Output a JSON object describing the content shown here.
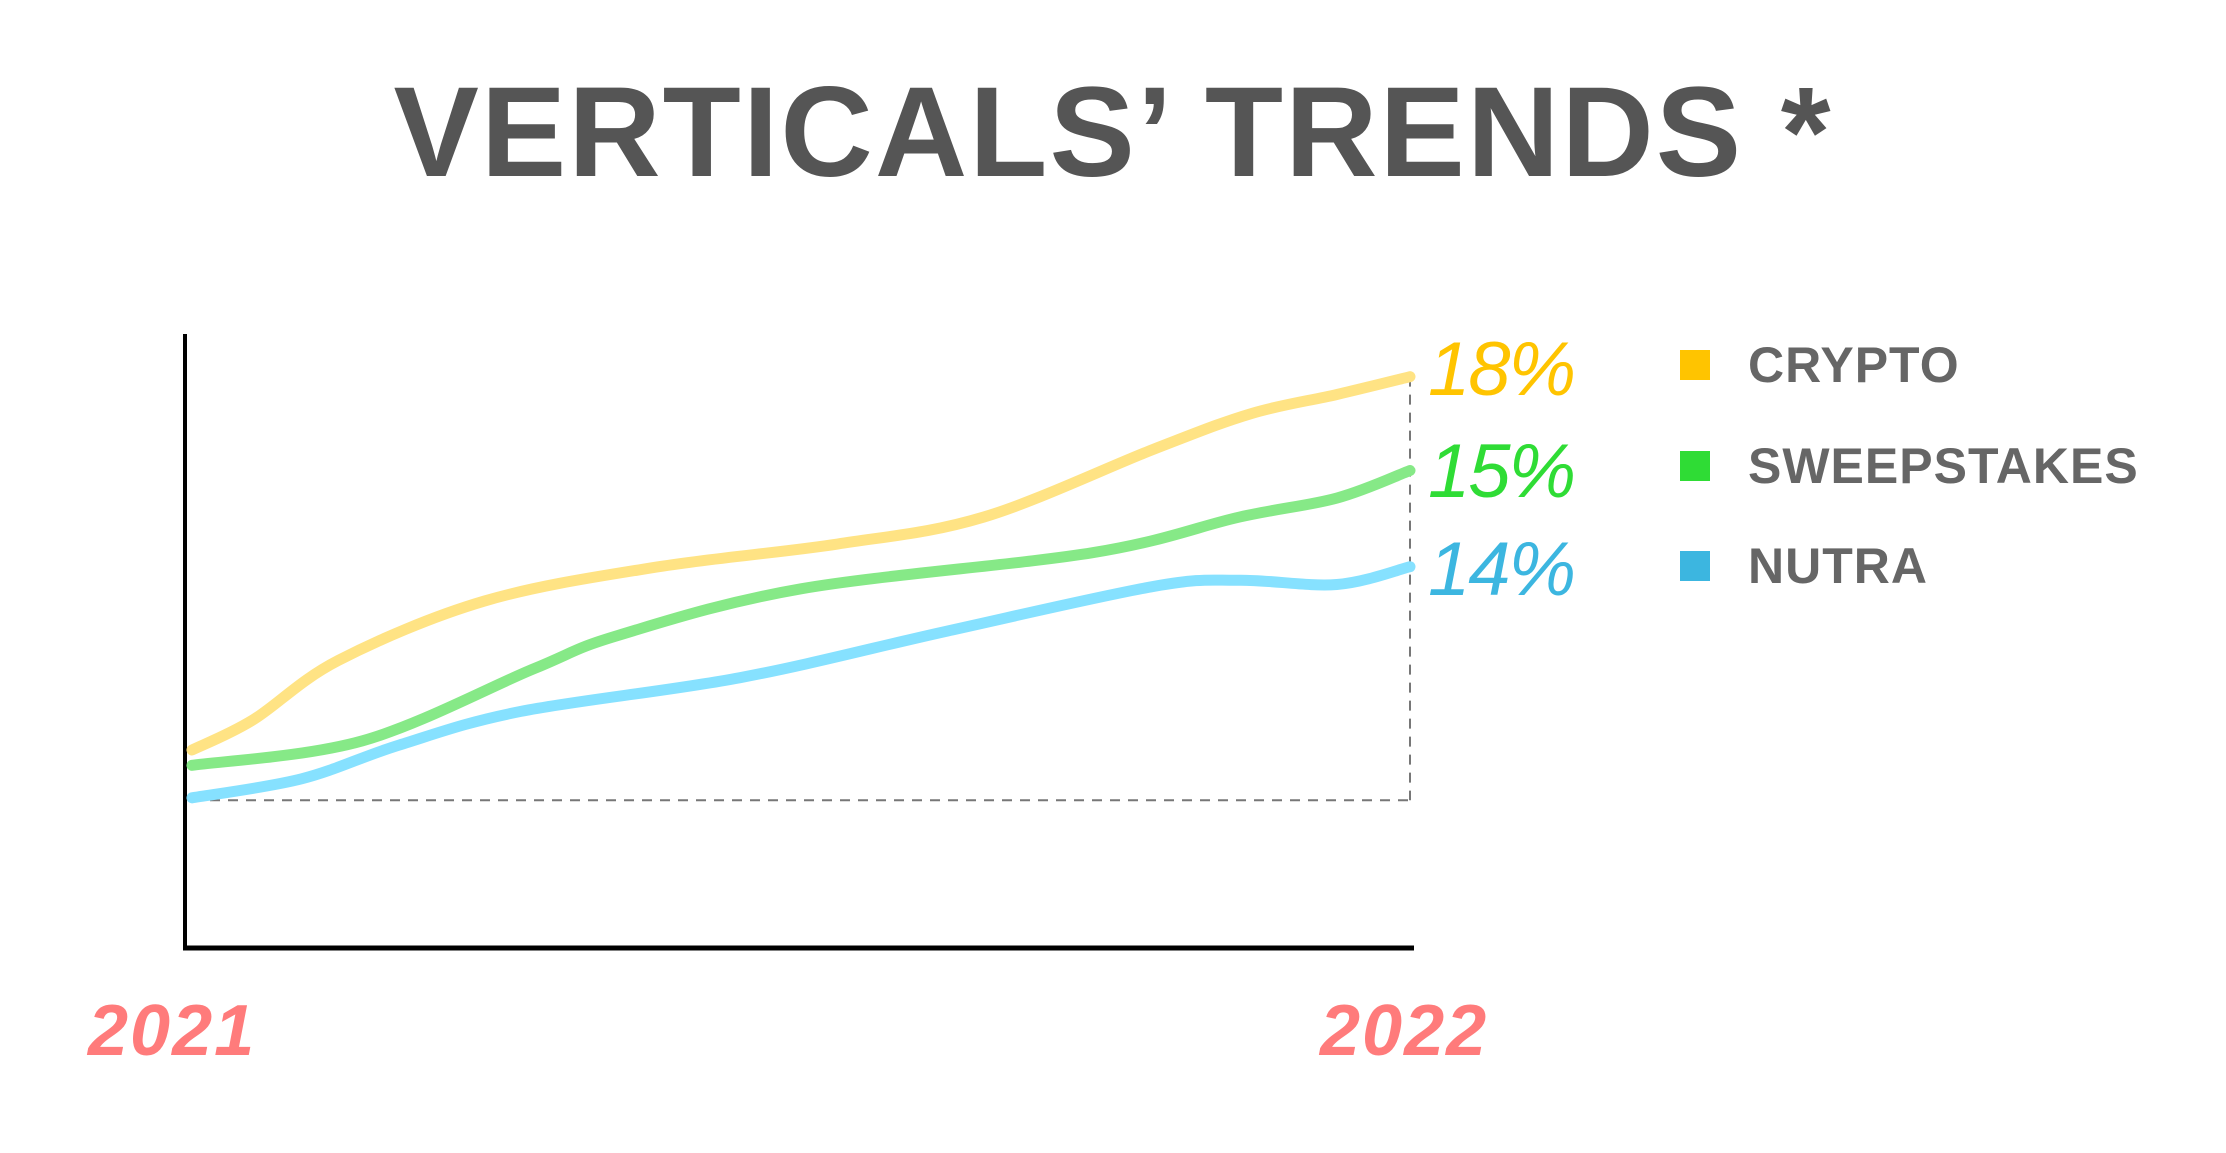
{
  "chart_data": {
    "type": "line",
    "title": "VERTICALS’ TRENDS *",
    "x_tick_labels": [
      "2021",
      "2022"
    ],
    "xlim": [
      2021,
      2022
    ],
    "ylim": [
      0,
      100
    ],
    "y_axis_ticks": false,
    "grid": false,
    "legend_placement": "right",
    "series": [
      {
        "name": "CRYPTO",
        "end_label": "18%",
        "line_color": "#ffe384",
        "label_color": "#ffc400",
        "points": [
          [
            2021.0,
            32.3
          ],
          [
            2021.05,
            37.2
          ],
          [
            2021.12,
            46.9
          ],
          [
            2021.24,
            56.6
          ],
          [
            2021.38,
            62.1
          ],
          [
            2021.53,
            65.9
          ],
          [
            2021.65,
            70.3
          ],
          [
            2021.79,
            81.4
          ],
          [
            2021.87,
            87.2
          ],
          [
            2021.94,
            90.3
          ],
          [
            2022.0,
            93.2
          ]
        ]
      },
      {
        "name": "SWEEPSTAKES",
        "end_label": "15%",
        "line_color": "#86e987",
        "label_color": "#2fdc35",
        "points": [
          [
            2021.0,
            29.8
          ],
          [
            2021.14,
            33.8
          ],
          [
            2021.28,
            45.5
          ],
          [
            2021.35,
            51.0
          ],
          [
            2021.5,
            58.6
          ],
          [
            2021.74,
            64.5
          ],
          [
            2021.86,
            70.3
          ],
          [
            2021.94,
            73.4
          ],
          [
            2022.0,
            77.9
          ]
        ]
      },
      {
        "name": "NUTRA",
        "end_label": "14%",
        "line_color": "#86e1ff",
        "label_color": "#3cb6e0",
        "points": [
          [
            2021.0,
            24.5
          ],
          [
            2021.09,
            27.6
          ],
          [
            2021.17,
            33.1
          ],
          [
            2021.27,
            38.6
          ],
          [
            2021.45,
            44.1
          ],
          [
            2021.62,
            51.7
          ],
          [
            2021.79,
            59.0
          ],
          [
            2021.86,
            60.0
          ],
          [
            2021.94,
            59.3
          ],
          [
            2022.0,
            62.2
          ]
        ]
      }
    ],
    "reference_baseline": 24.1,
    "legend_colors": [
      "#ffc400",
      "#2fdc35",
      "#3cb6e0"
    ]
  }
}
